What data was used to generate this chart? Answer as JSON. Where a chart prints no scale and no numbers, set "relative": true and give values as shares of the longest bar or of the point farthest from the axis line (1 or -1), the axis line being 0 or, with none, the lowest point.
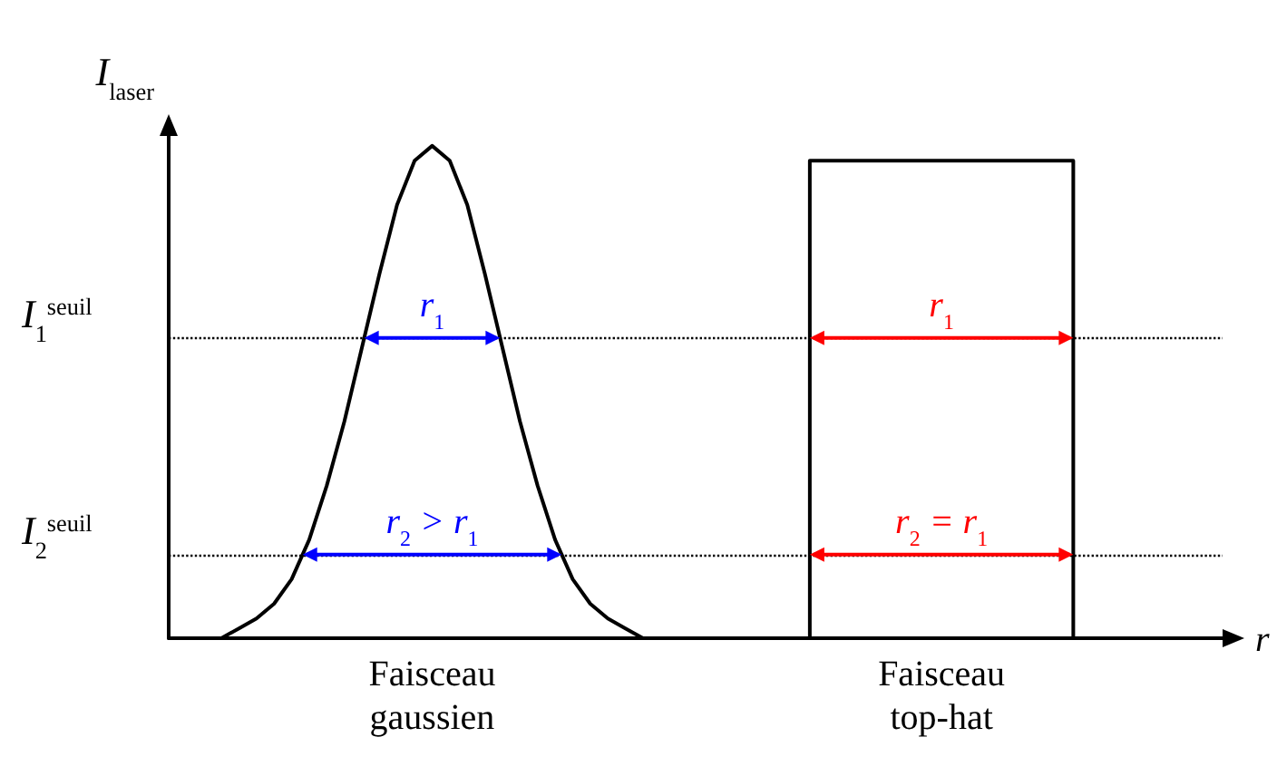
{
  "chart_data": {
    "type": "line",
    "relative": true,
    "xlabel": "r",
    "ylabel": "I$_{laser}$",
    "marker": "none",
    "tick_labels": false,
    "categories": [
      null,
      null,
      null,
      null,
      null,
      null,
      null,
      null,
      null,
      null,
      null,
      null,
      null,
      null,
      null,
      null,
      null,
      null,
      null,
      null,
      null,
      null,
      null,
      null,
      null,
      null,
      null,
      null,
      null,
      null,
      null,
      null,
      null,
      null,
      null,
      null,
      null,
      null,
      null,
      null,
      null,
      null,
      null,
      null,
      null,
      null,
      null,
      null,
      null,
      null,
      null,
      null,
      null,
      null,
      null,
      null,
      null,
      null,
      null,
      null,
      null
    ],
    "series": [
      {
        "name": "Faisceau gaussien",
        "color": "#000000",
        "values": [
          null,
          null,
          null,
          0,
          0.02,
          0.04,
          0.07,
          0.12,
          0.2,
          0.31,
          0.44,
          0.59,
          0.74,
          0.88,
          0.97,
          1,
          0.97,
          0.88,
          0.74,
          0.59,
          0.44,
          0.31,
          0.2,
          0.12,
          0.07,
          0.04,
          0.02,
          0,
          null,
          null,
          null,
          null,
          null,
          null,
          null,
          null,
          null,
          null,
          null,
          null,
          null,
          null,
          null,
          null,
          null,
          null,
          null,
          null,
          null,
          null,
          null,
          null,
          null,
          null,
          null,
          null,
          null,
          null,
          null,
          null,
          null
        ]
      },
      {
        "name": "Faisceau top-hat",
        "type": "step",
        "color": "#000000",
        "values": [
          null,
          null,
          null,
          null,
          null,
          null,
          null,
          null,
          null,
          null,
          null,
          null,
          null,
          null,
          null,
          null,
          null,
          null,
          null,
          null,
          null,
          null,
          null,
          null,
          null,
          null,
          null,
          null,
          null,
          null,
          null,
          null,
          null,
          null,
          null,
          null,
          0,
          0.97,
          0.97,
          0.97,
          0.97,
          0.97,
          0.97,
          0.97,
          0.97,
          0.97,
          0.97,
          0.97,
          0.97,
          0.97,
          0.97,
          0.97,
          0,
          null,
          null,
          null,
          null,
          null,
          null,
          null,
          null
        ]
      }
    ],
    "ref_lines": [
      {
        "axis": "y",
        "value": 0.61,
        "label": "I$_{1}$$^{seuil}$",
        "color": "#000000",
        "line_style": "dotted"
      },
      {
        "axis": "y",
        "value": 0.17,
        "label": "I$_{2}$$^{seuil}$",
        "color": "#000000",
        "line_style": "dotted"
      }
    ],
    "annotations": [
      {
        "text": "r$_{1}$",
        "y": 0.61
      },
      {
        "text": "r$_{2}$ > r$_{1}$",
        "y": 0.17
      },
      {
        "text": "r$_{1}$",
        "y": 0.61
      },
      {
        "text": "r$_{2}$ = r$_{1}$",
        "y": 0.17
      }
    ]
  }
}
